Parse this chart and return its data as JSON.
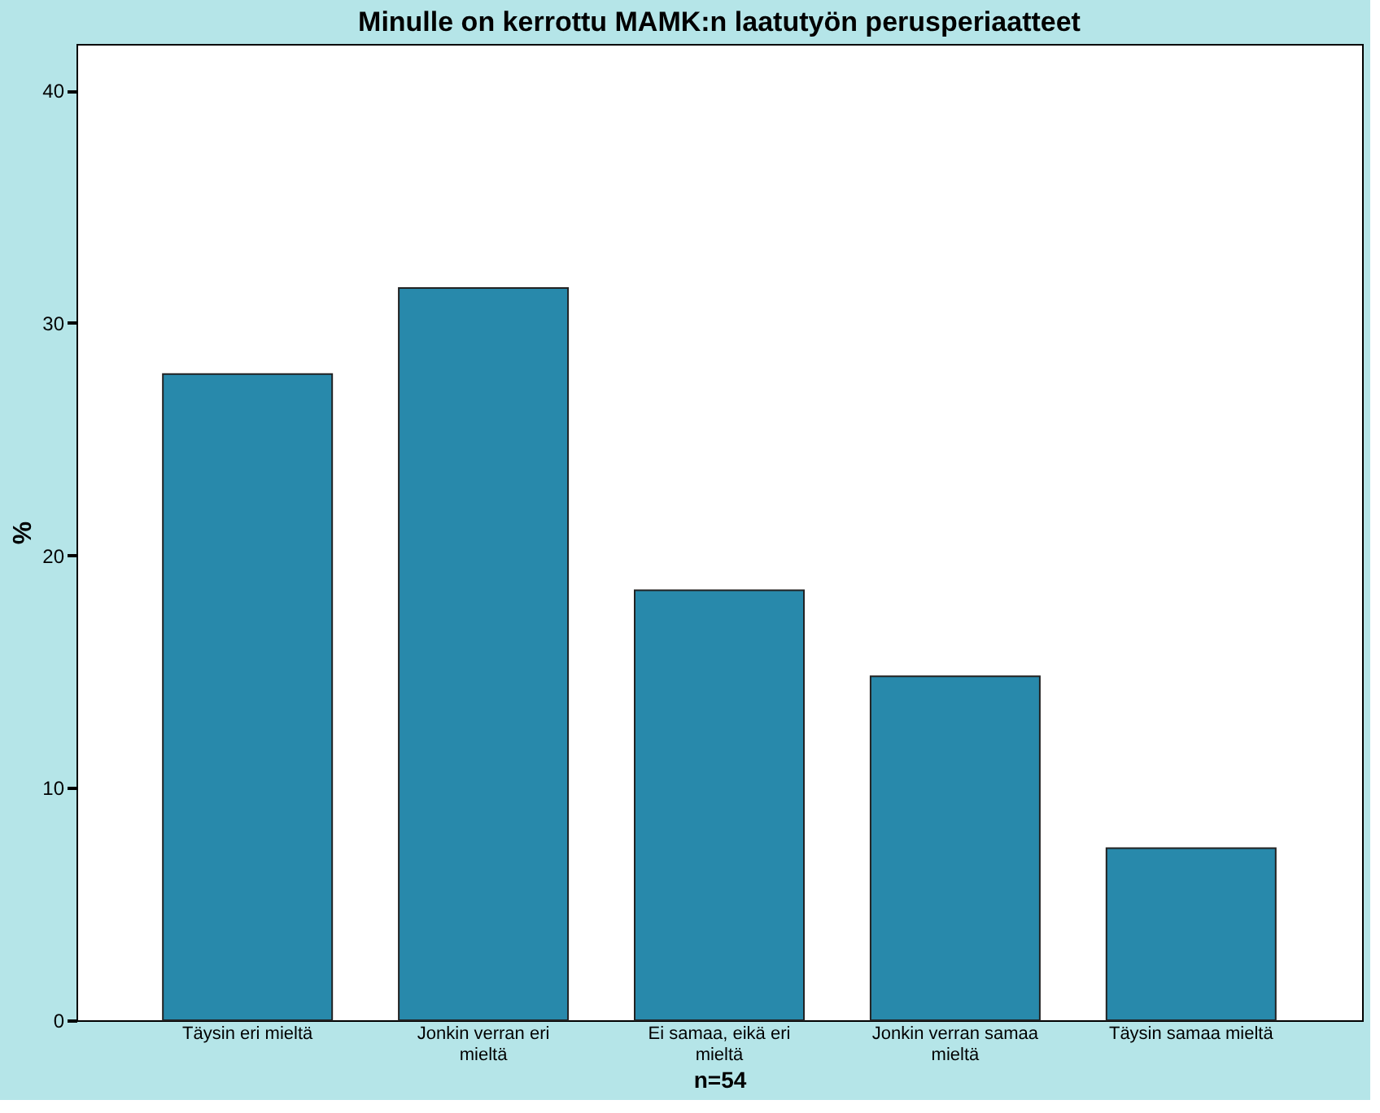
{
  "chart_data": {
    "type": "bar",
    "title": "Minulle on kerrottu MAMK:n laatutyön perusperiaatteet",
    "xlabel": "n=54",
    "ylabel": "%",
    "categories": [
      "Täysin eri mieltä",
      "Jonkin verran eri mieltä",
      "Ei samaa, eikä eri mieltä",
      "Jonkin verran samaa mieltä",
      "Täysin samaa mieltä"
    ],
    "values": [
      27.8,
      31.5,
      18.5,
      14.8,
      7.4
    ],
    "color": "#2889ab",
    "ylim": [
      0,
      42
    ],
    "yticks": [
      0,
      10,
      20,
      30,
      40
    ],
    "grid": false
  }
}
